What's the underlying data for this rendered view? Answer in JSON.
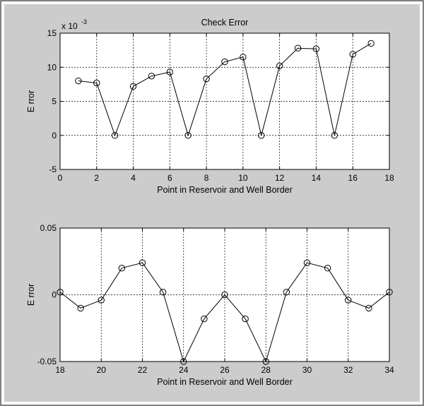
{
  "figure": {
    "background": "#cccccc",
    "axes_background": "#ffffff",
    "line_color": "#000000"
  },
  "chart_data": [
    {
      "type": "line",
      "title": "Check Error",
      "xlabel": "Point in Reservoir and Well Border",
      "ylabel": "E rror",
      "exponent_label": "x 10",
      "exponent_power": "-3",
      "xlim": [
        0,
        18
      ],
      "ylim": [
        -5,
        15
      ],
      "grid": true,
      "marker": "circle",
      "xticks": [
        0,
        2,
        4,
        6,
        8,
        10,
        12,
        14,
        16,
        18
      ],
      "yticks": [
        -5,
        0,
        5,
        10,
        15
      ],
      "series": [
        {
          "x": [
            1,
            2,
            3,
            4,
            5,
            6,
            7,
            8,
            9,
            10,
            11,
            12,
            13,
            14,
            15,
            16,
            17
          ],
          "y": [
            8.0,
            7.7,
            0.0,
            7.2,
            8.7,
            9.3,
            0.0,
            8.3,
            10.8,
            11.5,
            0.0,
            10.2,
            12.8,
            12.7,
            0.0,
            11.9,
            13.5
          ]
        }
      ]
    },
    {
      "type": "line",
      "title": "",
      "xlabel": "Point in Reservoir and Well Border",
      "ylabel": "E rror",
      "xlim": [
        18,
        34
      ],
      "ylim": [
        -0.05,
        0.05
      ],
      "grid": true,
      "marker": "circle",
      "xticks": [
        18,
        20,
        22,
        24,
        26,
        28,
        30,
        32,
        34
      ],
      "yticks": [
        -0.05,
        0,
        0.05
      ],
      "yticklabels": [
        "-0.05",
        "0",
        "0.05"
      ],
      "series": [
        {
          "x": [
            18,
            19,
            20,
            21,
            22,
            23,
            24,
            25,
            26,
            27,
            28,
            29,
            30,
            31,
            32,
            33,
            34
          ],
          "y": [
            0.002,
            -0.01,
            -0.004,
            0.02,
            0.024,
            0.002,
            -0.05,
            -0.018,
            0.0,
            -0.018,
            -0.05,
            0.002,
            0.024,
            0.02,
            -0.004,
            -0.01,
            0.002
          ]
        }
      ]
    }
  ]
}
